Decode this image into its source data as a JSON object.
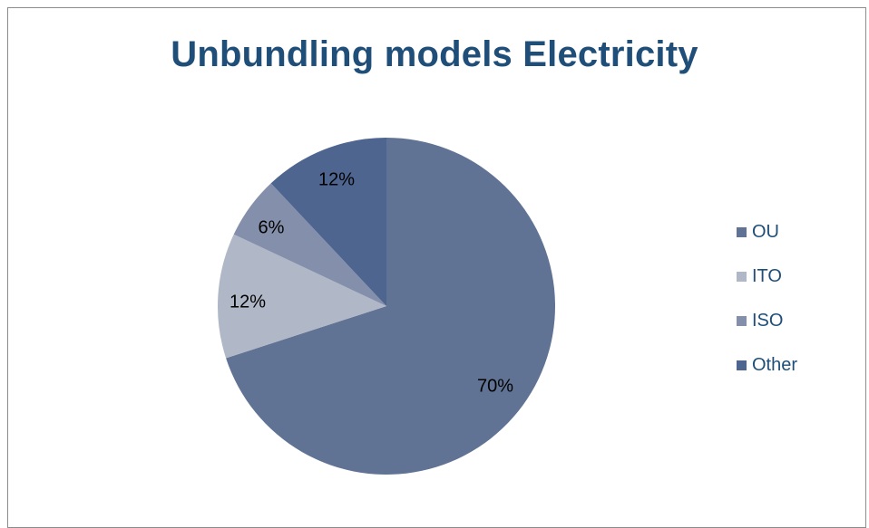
{
  "chart_data": {
    "type": "pie",
    "title": "Unbundling models Electricity",
    "categories": [
      "OU",
      "ITO",
      "ISO",
      "Other"
    ],
    "values": [
      70,
      12,
      6,
      12
    ],
    "labels": [
      "70%",
      "12%",
      "6%",
      "12%"
    ],
    "colors": [
      "#607394",
      "#b0b7c6",
      "#8490ab",
      "#4e6590"
    ],
    "legend_position": "right",
    "start_angle": "top",
    "direction": "clockwise"
  }
}
